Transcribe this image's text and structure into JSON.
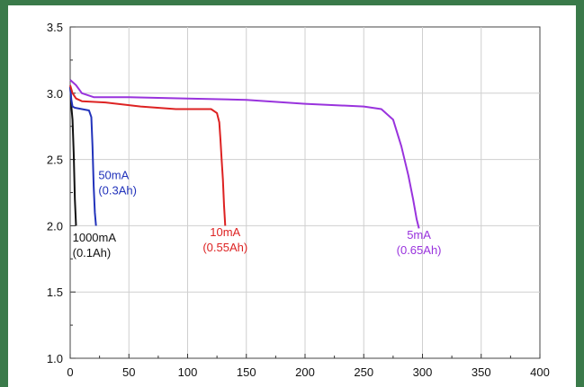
{
  "chart_data": {
    "type": "line",
    "title": "",
    "xlabel": "",
    "ylabel": "",
    "xlim": [
      0,
      400
    ],
    "ylim": [
      1.0,
      3.5
    ],
    "grid": true,
    "x_ticks": [
      "0",
      "50",
      "100",
      "150",
      "200",
      "250",
      "300",
      "350",
      "400"
    ],
    "y_ticks": [
      "1.0",
      "1.5",
      "2.0",
      "2.5",
      "3.0",
      "3.5"
    ],
    "series": [
      {
        "name": "1000mA",
        "label_lines": [
          "1000mA",
          "(0.1Ah)"
        ],
        "color": "#111111",
        "x": [
          0,
          0.5,
          1,
          2,
          3,
          4,
          5
        ],
        "y": [
          3.05,
          2.98,
          2.9,
          2.8,
          2.55,
          2.2,
          2.0
        ]
      },
      {
        "name": "50mA",
        "label_lines": [
          "50mA",
          "(0.3Ah)"
        ],
        "color": "#2233bb",
        "x": [
          0,
          1,
          2,
          4,
          10,
          16,
          18,
          19,
          20,
          21,
          22
        ],
        "y": [
          3.05,
          2.95,
          2.9,
          2.89,
          2.88,
          2.87,
          2.82,
          2.6,
          2.3,
          2.1,
          2.0
        ]
      },
      {
        "name": "10mA",
        "label_lines": [
          "10mA",
          "(0.55Ah)"
        ],
        "color": "#dd2222",
        "x": [
          0,
          2,
          5,
          10,
          30,
          60,
          90,
          120,
          125,
          127,
          128,
          129,
          130,
          131,
          132
        ],
        "y": [
          3.06,
          3.0,
          2.96,
          2.94,
          2.93,
          2.9,
          2.88,
          2.88,
          2.85,
          2.78,
          2.65,
          2.5,
          2.35,
          2.15,
          2.0
        ]
      },
      {
        "name": "5mA",
        "label_lines": [
          "5mA",
          "(0.65Ah)"
        ],
        "color": "#9933dd",
        "x": [
          0,
          5,
          10,
          20,
          50,
          100,
          150,
          200,
          250,
          265,
          275,
          282,
          288,
          292,
          295,
          297
        ],
        "y": [
          3.1,
          3.06,
          3.0,
          2.97,
          2.97,
          2.96,
          2.95,
          2.92,
          2.9,
          2.88,
          2.8,
          2.6,
          2.38,
          2.2,
          2.05,
          1.98
        ]
      }
    ]
  }
}
